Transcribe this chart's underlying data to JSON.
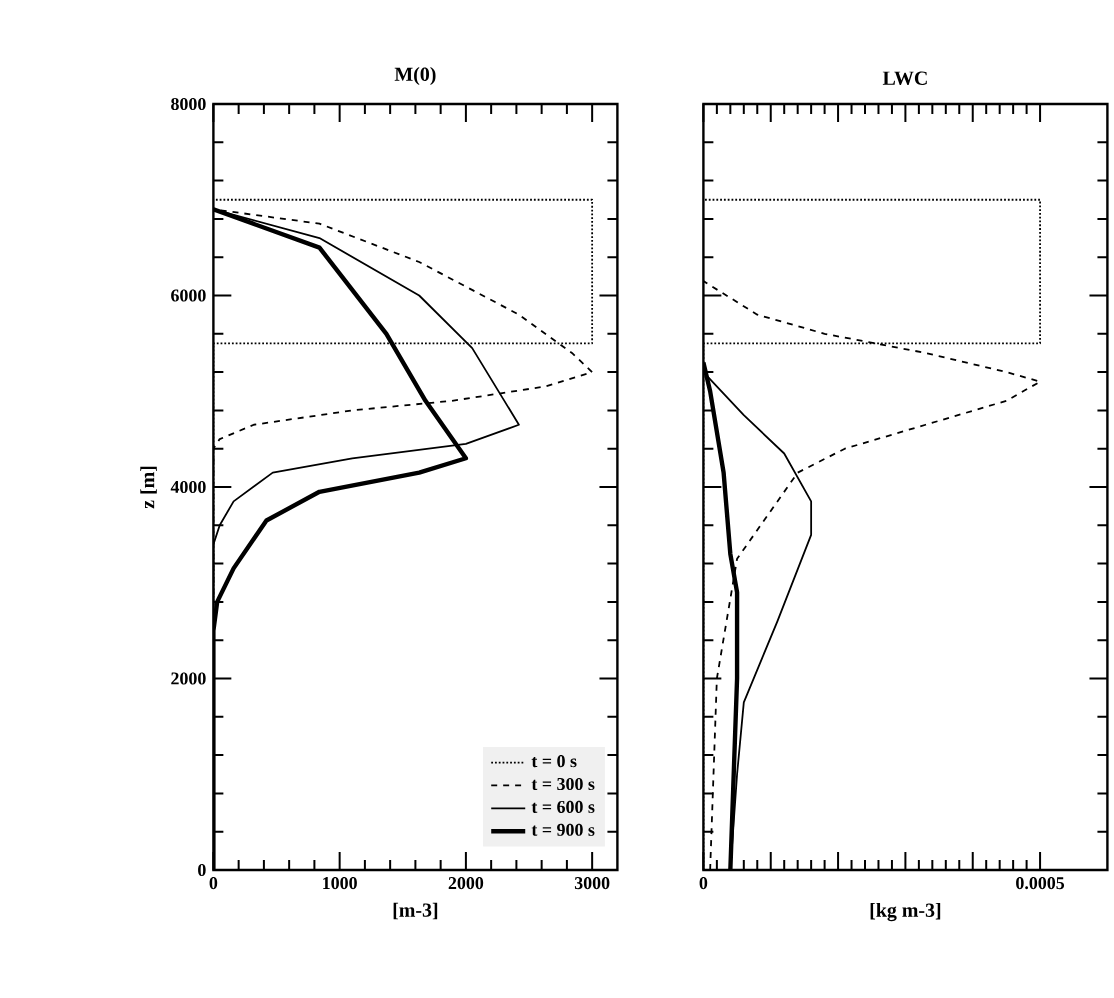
{
  "chart_data": [
    {
      "type": "line",
      "title": "M(0)",
      "xlabel": "[m-3]",
      "ylabel": "z [m]",
      "xlim": [
        0,
        3200
      ],
      "ylim": [
        0,
        8000
      ],
      "xticks": [
        0,
        1000,
        2000,
        3000
      ],
      "yticks": [
        0,
        2000,
        4000,
        6000,
        8000
      ],
      "grid": false,
      "legend": "bottom right",
      "marker": "none",
      "series": [
        {
          "name": "t = 0 s",
          "color": "#000000",
          "line_style": "dotted",
          "x": [
            0,
            0,
            3000,
            3000,
            0
          ],
          "values": [
            0,
            5500,
            5500,
            7000,
            7000
          ]
        },
        {
          "name": "t = 300 s",
          "color": "#000000",
          "line_style": "dashed",
          "x": [
            0,
            0,
            50,
            320,
            1100,
            1890,
            2630,
            3000,
            2840,
            2420,
            1630,
            840,
            0
          ],
          "values": [
            0,
            4400,
            4500,
            4650,
            4800,
            4900,
            5050,
            5200,
            5400,
            5800,
            6350,
            6750,
            6900
          ]
        },
        {
          "name": "t = 600 s",
          "color": "#000000",
          "line_style": "solid",
          "x": [
            0,
            0,
            50,
            160,
            470,
            1100,
            2000,
            2420,
            2050,
            1630,
            840,
            0
          ],
          "values": [
            0,
            3400,
            3600,
            3850,
            4150,
            4300,
            4450,
            4650,
            5450,
            6000,
            6600,
            6900
          ]
        },
        {
          "name": "t = 900 s",
          "color": "#000000",
          "line_style": "solid",
          "x": [
            0,
            0,
            30,
            160,
            420,
            840,
            1630,
            2000,
            1680,
            1370,
            840,
            0
          ],
          "values": [
            0,
            2500,
            2800,
            3150,
            3650,
            3950,
            4150,
            4300,
            4900,
            5600,
            6500,
            6900
          ]
        }
      ]
    },
    {
      "type": "line",
      "title": "LWC",
      "xlabel": "[kg m-3]",
      "xlim": [
        0,
        0.0006
      ],
      "ylim": [
        0,
        8000
      ],
      "xticks": [
        0,
        {
          "value": 0.0001,
          "label": null
        },
        {
          "value": 0.0002,
          "label": null
        },
        {
          "value": 0.0003,
          "label": null
        },
        {
          "value": 0.0004,
          "label": null
        },
        0.0005
      ],
      "yticks": [
        {
          "value": 0,
          "label": null
        },
        {
          "value": 2000,
          "label": null
        },
        {
          "value": 4000,
          "label": null
        },
        {
          "value": 6000,
          "label": null
        },
        {
          "value": 8000,
          "label": null
        }
      ],
      "grid": false,
      "tick_labels": "x",
      "marker": "none",
      "series": [
        {
          "color": "#000000",
          "line_style": "dotted",
          "x": [
            0,
            0,
            0.0005,
            0.0005,
            0
          ],
          "values": [
            0,
            5500,
            5500,
            7000,
            7000
          ]
        },
        {
          "color": "#000000",
          "line_style": "dashed",
          "x": [
            1e-05,
            2e-05,
            5e-05,
            9e-05,
            0.00014,
            0.00021,
            0.00033,
            0.00045,
            0.0005,
            0.00045,
            0.00033,
            0.00018,
            8e-05,
            0
          ],
          "values": [
            0,
            2000,
            3250,
            3650,
            4150,
            4400,
            4650,
            4900,
            5100,
            5200,
            5400,
            5600,
            5800,
            6150
          ]
        },
        {
          "color": "#000000",
          "line_style": "solid",
          "x": [
            4e-05,
            5e-05,
            6e-05,
            0.00011,
            0.00016,
            0.00016,
            0.00012,
            6e-05,
            0
          ],
          "values": [
            0,
            1000,
            1750,
            2600,
            3500,
            3850,
            4350,
            4750,
            5200
          ]
        },
        {
          "color": "#000000",
          "line_style": "solid",
          "x": [
            4e-05,
            5e-05,
            5e-05,
            4e-05,
            3e-05,
            1e-05,
            0
          ],
          "values": [
            0,
            2000,
            2900,
            3300,
            4150,
            5000,
            5300
          ]
        }
      ]
    }
  ]
}
